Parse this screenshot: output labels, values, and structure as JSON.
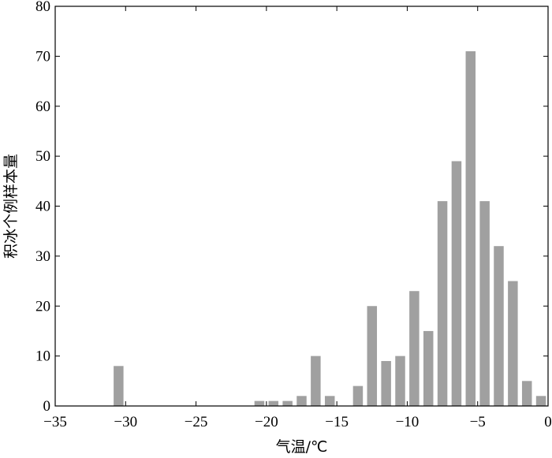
{
  "chart_data": {
    "type": "bar",
    "xlabel": "气温/℃",
    "ylabel": "积冰个例样本量",
    "xlim": [
      -35,
      0
    ],
    "ylim": [
      0,
      80
    ],
    "xticks": [
      -35,
      -30,
      -25,
      -20,
      -15,
      -10,
      -5,
      0
    ],
    "yticks": [
      0,
      10,
      20,
      30,
      40,
      50,
      60,
      70,
      80
    ],
    "xtick_labels": [
      "−35",
      "−30",
      "−25",
      "−20",
      "−15",
      "−10",
      "−5",
      "0"
    ],
    "ytick_labels": [
      "0",
      "10",
      "20",
      "30",
      "40",
      "50",
      "60",
      "70",
      "80"
    ],
    "bar_width": 0.7,
    "grid": false,
    "bar_color": "#a0a0a0",
    "x": [
      -30.5,
      -20.5,
      -19.5,
      -18.5,
      -17.5,
      -16.5,
      -15.5,
      -13.5,
      -12.5,
      -11.5,
      -10.5,
      -9.5,
      -8.5,
      -7.5,
      -6.5,
      -5.5,
      -4.5,
      -3.5,
      -2.5,
      -1.5,
      -0.5
    ],
    "values": [
      8,
      1,
      1,
      1,
      2,
      10,
      2,
      4,
      20,
      9,
      10,
      23,
      15,
      41,
      49,
      71,
      41,
      32,
      25,
      5,
      2
    ]
  }
}
